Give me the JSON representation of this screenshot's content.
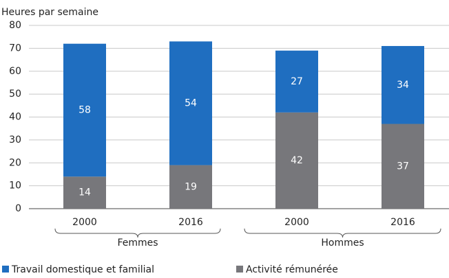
{
  "chart_data": {
    "type": "stacked_bar",
    "y_axis_label": "Heures par semaine",
    "categories": [
      "2000",
      "2016",
      "2000",
      "2016"
    ],
    "groups": [
      "Femmes",
      "Hommes"
    ],
    "series": [
      {
        "name": "Travail domestique et familial",
        "color": "#1f6ec0",
        "values": [
          58,
          54,
          27,
          34
        ]
      },
      {
        "name": "Activité rémunérée",
        "color": "#77777b",
        "values": [
          14,
          19,
          42,
          37
        ]
      }
    ],
    "ylim": [
      0,
      80
    ],
    "yticks": [
      0,
      10,
      20,
      30,
      40,
      50,
      60,
      70,
      80
    ],
    "grid": true
  }
}
